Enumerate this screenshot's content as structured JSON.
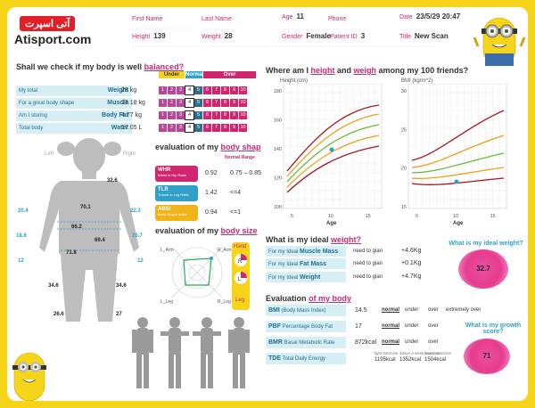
{
  "brand": {
    "arabic": "آتی اسپرت",
    "site": "Atisport.com"
  },
  "header": {
    "first_name_label": "First Name",
    "first_name": "",
    "last_name_label": "Last Name",
    "last_name": "",
    "age_label": "Age",
    "age": "11",
    "phone_label": "Phone",
    "phone": "",
    "date_label": "Date",
    "date": "23/5/29 20:47",
    "height_label": "Height",
    "height": "139",
    "weight_label": "Weight",
    "weight": "28",
    "gender_label": "Gender",
    "gender": "Female",
    "patient_label": "Patient ID",
    "patient": "3",
    "title_label": "Title",
    "title": "New Scan"
  },
  "balanced": {
    "title_pre": "Shall we check if my body is well ",
    "title_hl": "balanced?",
    "scale_labels": [
      "Under",
      "Normal",
      "Over"
    ],
    "rows": [
      {
        "label": "My total",
        "metric": "Weight",
        "value": "28 kg",
        "selected": 3
      },
      {
        "label": "For a great body shape",
        "metric": "Muscle",
        "value": "13.18 kg",
        "selected": 3
      },
      {
        "label": "Am I storing",
        "metric": "Body Fat",
        "value": "4.77 kg",
        "selected": 3
      },
      {
        "label": "Total body",
        "metric": "Water",
        "value": "17.05 L",
        "selected": 3
      }
    ],
    "scale_numbers": [
      "1",
      "2",
      "3",
      "4",
      "5",
      "6",
      "7",
      "8",
      "9",
      "10"
    ]
  },
  "body_map": {
    "left": "Left",
    "right": "Right",
    "values": [
      "32.6",
      "70.1",
      "20.4",
      "22.3",
      "66.2",
      "18.8",
      "20.7",
      "69.4",
      "71.8",
      "12",
      "12",
      "34.6",
      "34.6",
      "26.6",
      "27"
    ]
  },
  "shape": {
    "title_pre": "evaluation of my ",
    "title_hl": "body shap",
    "range_header": "Normal Range",
    "rows": [
      {
        "code": "WHR",
        "sub": "Waist to Hip Ratio",
        "value": "0.92",
        "range": "0.75 – 0.85",
        "color": "#d0266f"
      },
      {
        "code": "TLR",
        "sub": "Trunck to Leg Ratio",
        "value": "1.42",
        "range": "<=4",
        "color": "#2fa0c8"
      },
      {
        "code": "ABSI",
        "sub": "Body Shape Index",
        "value": "0.94",
        "range": "<=1",
        "color": "#f2b21a"
      }
    ]
  },
  "body_size": {
    "title_pre": "evaluation of my ",
    "title_hl": "body size",
    "axes": [
      "L_Arm",
      "R_Arm",
      "L_Leg",
      "R_Leg"
    ],
    "hand": "Hand",
    "leg": "Leg"
  },
  "friends": {
    "title_pre": "Where am I ",
    "title_h": "height",
    "title_and": " and ",
    "title_w": "weigh",
    "title_post": "  among my 100 friends?",
    "height_chart": {
      "ylabel": "Height (cm)",
      "xlabel": "Age",
      "yticks": [
        "180",
        "160",
        "140",
        "120",
        "100"
      ],
      "xticks": [
        "5",
        "10",
        "15"
      ]
    },
    "bmi_chart": {
      "ylabel": "BMI (kg/m^2)",
      "xlabel": "Age",
      "yticks": [
        "30",
        "25",
        "20",
        "15"
      ],
      "xticks": [
        "5",
        "10",
        "15"
      ]
    }
  },
  "ideal": {
    "title_pre": "What is my ideal ",
    "title_hl": "weight?",
    "blob_title": "What is my ideal weight?",
    "blob_value": "32.7",
    "rows": [
      {
        "label": "For my Ideal ",
        "metric": "Muscle Mass",
        "mid": "need to gian",
        "value": "+4.6Kg"
      },
      {
        "label": "For my Ideal ",
        "metric": "Fat Mass",
        "mid": "need to gian",
        "value": "+0.1Kg"
      },
      {
        "label": "For my Ideal ",
        "metric": "Weight",
        "mid": "need to gian",
        "value": "+4.7Kg"
      }
    ]
  },
  "evaluation": {
    "title_pre": "Evaluation ",
    "title_hl": "of my body",
    "blob_title": "What is my growth score?",
    "blob_value": "71",
    "rows": [
      {
        "metric": "BMI",
        "sub": "(Body Mass Index)",
        "value": "14.5",
        "s1": "normal",
        "s2": "under",
        "s3": "over",
        "s4": "extremely over"
      },
      {
        "metric": "PBF",
        "sub": "Percentage Body Fat",
        "value": "17",
        "s1": "normal",
        "s2": "under",
        "s3": "over",
        "s4": ""
      },
      {
        "metric": "BMR",
        "sub": "Basal Metabolic Rate",
        "value": "872kcal",
        "s1": "normal",
        "s2": "under",
        "s3": "over",
        "s4": ""
      },
      {
        "metric": "TDE",
        "sub": "Total Daily Energy",
        "value": "",
        "s1": "",
        "s2": "",
        "s3": "",
        "s4": ""
      }
    ],
    "tde": [
      {
        "label": "light exercise",
        "value": "1195kcal"
      },
      {
        "label": "3days a week exercise",
        "value": "1352kcal"
      },
      {
        "label": "heavy exercise",
        "value": "1504kcal"
      }
    ]
  },
  "colors": {
    "pink": "#d0266f",
    "blue": "#2fa0c8",
    "yellow": "#f6d41a"
  }
}
